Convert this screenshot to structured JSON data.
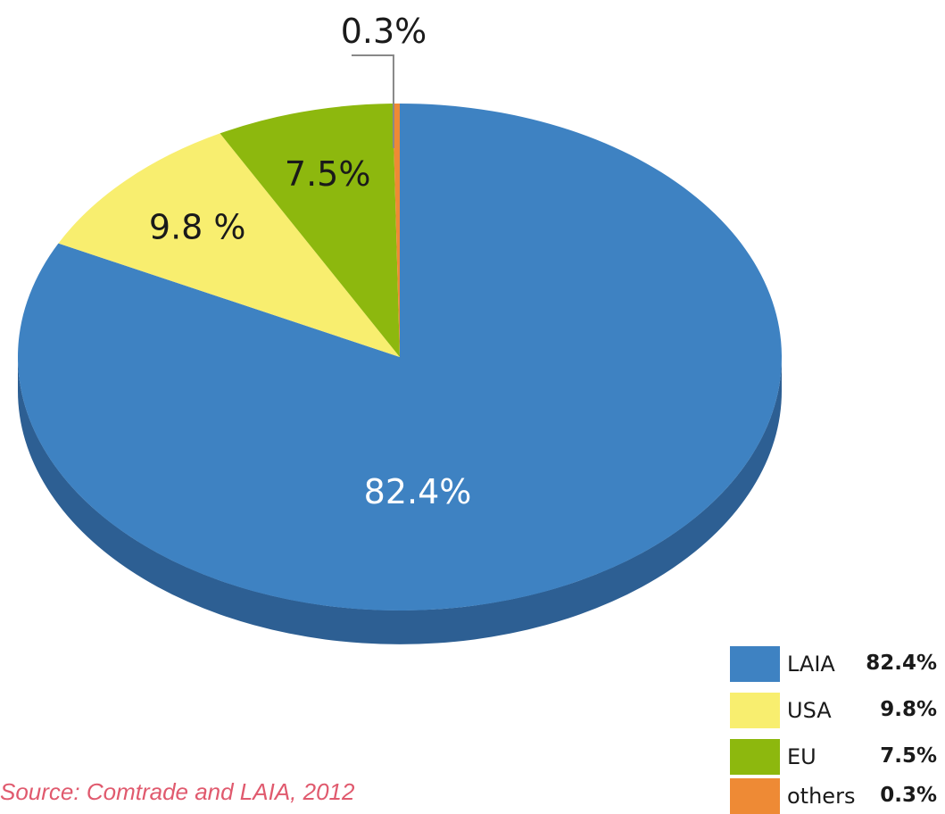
{
  "chart_data": {
    "type": "pie",
    "style": "3d",
    "categories": [
      "LAIA",
      "USA",
      "EU",
      "others"
    ],
    "values": [
      82.4,
      9.8,
      7.5,
      0.3
    ],
    "unit": "%",
    "slice_labels": [
      "82.4%",
      "9.8 %",
      "7.5%",
      "0.3%"
    ],
    "colors": [
      "#3e82c2",
      "#f8ee6f",
      "#8db80e",
      "#ee8a35"
    ],
    "side_colors": [
      "#2d5f93",
      "#c9c25a",
      "#6d8f0b",
      "#b86a28"
    ],
    "label_colors": [
      "#ffffff",
      "#1a1a1a",
      "#1a1a1a",
      "#1a1a1a"
    ],
    "legend": {
      "placement": "bottom-right",
      "items": [
        {
          "name": "LAIA",
          "value": "82.4%"
        },
        {
          "name": "USA",
          "value": "9.8%"
        },
        {
          "name": "EU",
          "value": "7.5%"
        },
        {
          "name": "others",
          "value": "0.3%"
        }
      ]
    }
  },
  "source": "Source: Comtrade and LAIA, 2012"
}
